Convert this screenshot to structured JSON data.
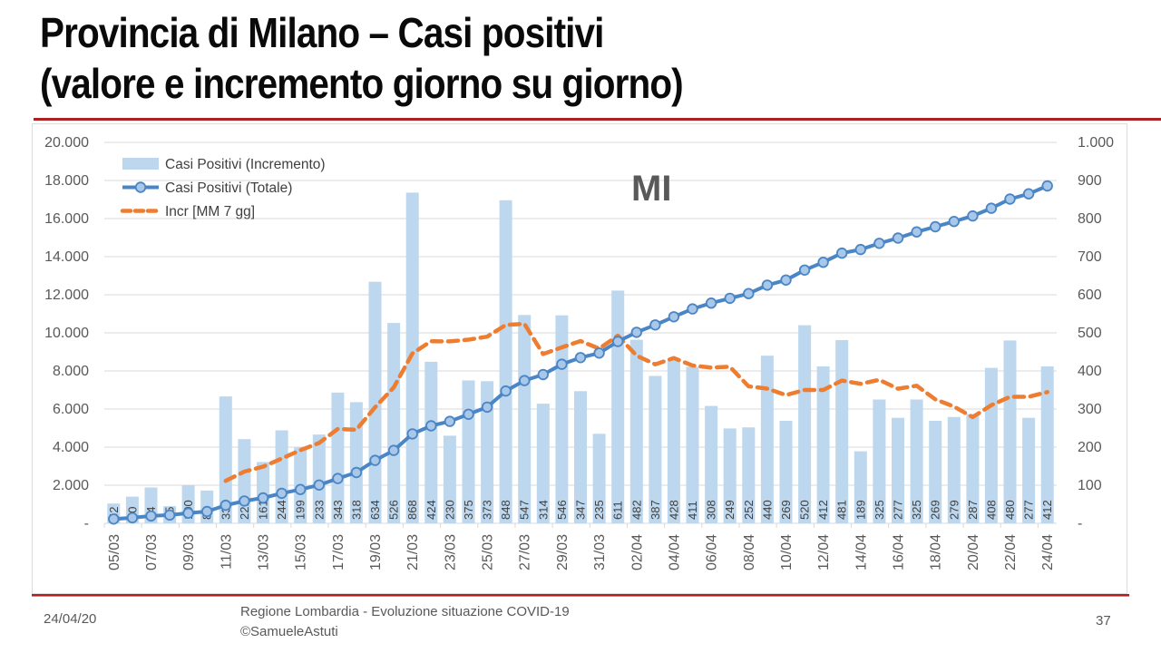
{
  "slide": {
    "title_line1": "Provincia di Milano – Casi positivi",
    "title_line2": "(valore e incremento giorno su giorno)",
    "accent_color": "#B02020"
  },
  "footer": {
    "date": "24/04/20",
    "credit_line1": "Regione Lombardia - Evoluzione situazione COVID-19",
    "credit_line2": "©SamueleAstuti",
    "page_number": "37"
  },
  "chart_data": {
    "type": "combo-bar-line",
    "title": "Provincia di Milano – Casi positivi (valore e incremento giorno su giorno)",
    "region_label": "MI",
    "legend_position": "top-left-inside",
    "grid": true,
    "x_label_interval": 2,
    "categories": [
      "05/03",
      "06/03",
      "07/03",
      "08/03",
      "09/03",
      "10/03",
      "11/03",
      "12/03",
      "13/03",
      "14/03",
      "15/03",
      "16/03",
      "17/03",
      "18/03",
      "19/03",
      "20/03",
      "21/03",
      "22/03",
      "23/03",
      "24/03",
      "25/03",
      "26/03",
      "27/03",
      "28/03",
      "29/03",
      "30/03",
      "31/03",
      "01/04",
      "02/04",
      "03/04",
      "04/04",
      "05/04",
      "06/04",
      "07/04",
      "08/04",
      "09/04",
      "10/04",
      "11/04",
      "12/04",
      "13/04",
      "14/04",
      "15/04",
      "16/04",
      "17/04",
      "18/04",
      "19/04",
      "20/04",
      "21/04",
      "22/04",
      "23/04",
      "24/04"
    ],
    "series": [
      {
        "name": "Casi Positivi (Incremento)",
        "type": "bar",
        "axis": "right",
        "color": "#BDD7EE",
        "data_labels": true,
        "values": [
          52,
          70,
          94,
          45,
          100,
          86,
          333,
          221,
          161,
          244,
          199,
          233,
          343,
          318,
          634,
          526,
          868,
          424,
          230,
          375,
          373,
          848,
          547,
          314,
          546,
          347,
          235,
          611,
          482,
          387,
          428,
          411,
          308,
          249,
          252,
          440,
          269,
          520,
          412,
          481,
          189,
          325,
          277,
          325,
          269,
          279,
          287,
          408,
          480,
          277,
          412
        ]
      },
      {
        "name": "Casi Positivi (Totale)",
        "type": "line",
        "axis": "left",
        "color": "#4A86C5",
        "marker_fill": "#A9C7E9",
        "values": [
          222,
          292,
          386,
          431,
          531,
          617,
          950,
          1171,
          1332,
          1576,
          1775,
          2008,
          2351,
          2669,
          3303,
          3829,
          4697,
          5121,
          5351,
          5726,
          6099,
          6947,
          7494,
          7808,
          8354,
          8701,
          8936,
          9547,
          10029,
          10416,
          10844,
          11255,
          11563,
          11812,
          12064,
          12504,
          12773,
          13293,
          13705,
          14186,
          14375,
          14700,
          14977,
          15302,
          15571,
          15850,
          16137,
          16545,
          17025,
          17302,
          17714
        ]
      },
      {
        "name": "Incr [MM 7 gg]",
        "type": "line-dashed",
        "axis": "right",
        "color": "#ED7D31",
        "window": 7,
        "values": [
          null,
          null,
          null,
          null,
          null,
          null,
          111.4,
          135.6,
          148.6,
          170,
          192,
          211,
          247.7,
          245.6,
          304.6,
          356.7,
          445.9,
          478,
          477.6,
          482.1,
          490,
          520.6,
          523.6,
          444.4,
          461.9,
          478.6,
          458.6,
          492.6,
          440.3,
          417.4,
          433.7,
          414.4,
          408.9,
          410.9,
          359.6,
          353.6,
          336.7,
          349.9,
          350,
          374.7,
          366.1,
          376.6,
          353.3,
          361.3,
          325.4,
          306.4,
          278.7,
          310,
          332.1,
          332.1,
          344.6
        ]
      }
    ],
    "left_axis": {
      "min": 0,
      "max": 20000,
      "step": 2000,
      "labels": [
        "20.000",
        "18.000",
        "16.000",
        "14.000",
        "12.000",
        "10.000",
        "8.000",
        "6.000",
        "4.000",
        "2.000",
        "-"
      ]
    },
    "right_axis": {
      "min": 0,
      "max": 1000,
      "step": 100,
      "labels": [
        "1.000",
        "900",
        "800",
        "700",
        "600",
        "500",
        "400",
        "300",
        "200",
        "100",
        "-"
      ]
    },
    "colors": {
      "grid": "#D9D9D9",
      "axis_text": "#595959",
      "bar_label_text": "#404040",
      "legend_text": "#404040",
      "region_label_text": "#595959"
    }
  }
}
